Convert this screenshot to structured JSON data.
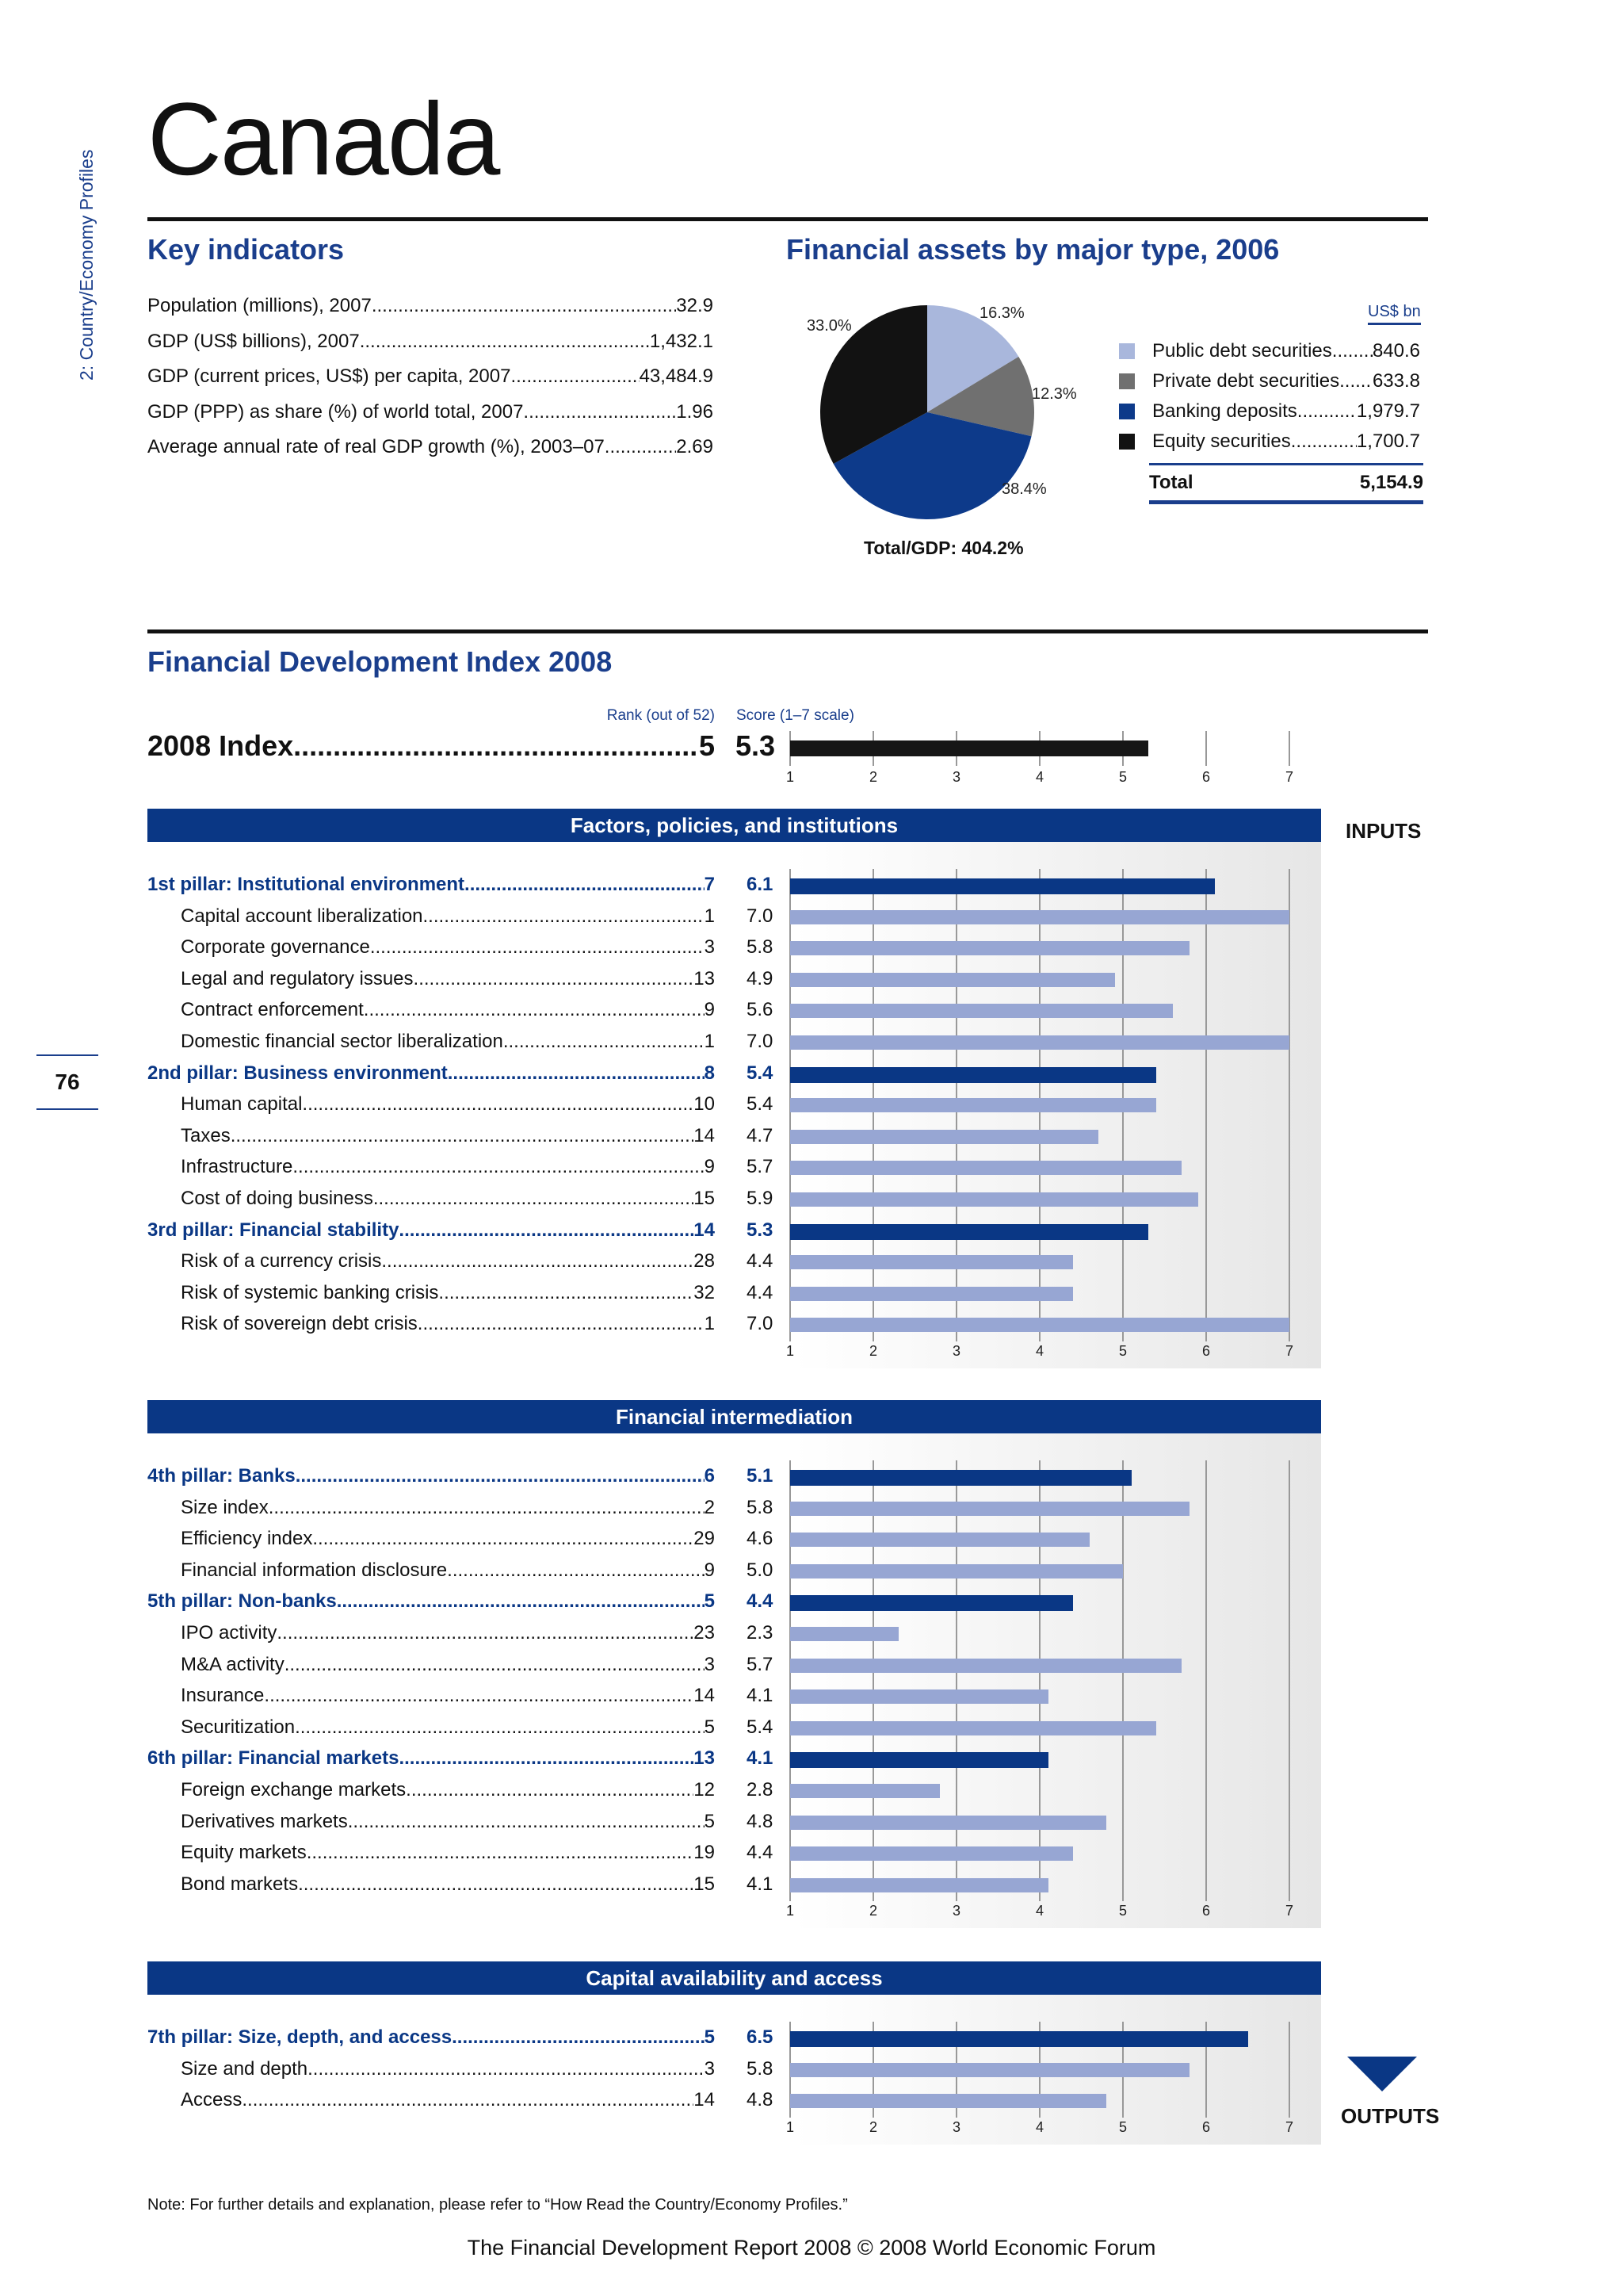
{
  "side_tab": "2: Country/Economy Profiles",
  "page_number": "76",
  "country": "Canada",
  "key_indicators": {
    "title": "Key indicators",
    "items": [
      {
        "label": "Population (millions), 2007",
        "value": "32.9"
      },
      {
        "label": "GDP (US$ billions), 2007",
        "value": "1,432.1"
      },
      {
        "label": "GDP (current prices, US$) per capita, 2007",
        "value": "43,484.9"
      },
      {
        "label": "GDP (PPP) as share (%) of world total, 2007",
        "value": "1.96"
      },
      {
        "label": "Average annual rate of real GDP growth (%), 2003–07",
        "value": "2.69"
      }
    ]
  },
  "financial_assets": {
    "title": "Financial assets by major type, 2006",
    "unit": "US$ bn",
    "pie_labels": [
      "16.3%",
      "12.3%",
      "38.4%",
      "33.0%"
    ],
    "total_gdp": "Total/GDP: 404.2%",
    "legend": [
      {
        "label": "Public debt securities",
        "value": "840.6",
        "color": "#a9b7dc"
      },
      {
        "label": "Private debt securities",
        "value": "633.8",
        "color": "#707070"
      },
      {
        "label": "Banking deposits",
        "value": "1,979.7",
        "color": "#0d3a8a"
      },
      {
        "label": "Equity securities",
        "value": "1,700.7",
        "color": "#121212"
      }
    ],
    "total_label": "Total",
    "total_value": "5,154.9"
  },
  "chart_data": [
    {
      "type": "pie",
      "title": "Financial assets by major type, 2006",
      "categories": [
        "Public debt securities",
        "Private debt securities",
        "Banking deposits",
        "Equity securities"
      ],
      "values": [
        840.6,
        633.8,
        1979.7,
        1700.7
      ],
      "percent_labels": [
        "16.3%",
        "12.3%",
        "38.4%",
        "33.0%"
      ],
      "colors": [
        "#a9b7dc",
        "#707070",
        "#0d3a8a",
        "#121212"
      ]
    },
    {
      "type": "bar",
      "orientation": "horizontal",
      "title": "Financial Development Index 2008",
      "xlim": [
        1,
        7
      ],
      "x_ticks": [
        1,
        2,
        3,
        4,
        5,
        6,
        7
      ],
      "categories": [
        "2008 Index",
        "1st pillar: Institutional environment",
        "Capital account liberalization",
        "Corporate governance",
        "Legal and regulatory issues",
        "Contract enforcement",
        "Domestic financial sector liberalization",
        "2nd pillar: Business environment",
        "Human capital",
        "Taxes",
        "Infrastructure",
        "Cost of doing business",
        "3rd pillar: Financial stability",
        "Risk of a currency crisis",
        "Risk of systemic banking crisis",
        "Risk of sovereign debt crisis",
        "4th pillar: Banks",
        "Size index",
        "Efficiency index",
        "Financial information disclosure",
        "5th pillar: Non-banks",
        "IPO activity",
        "M&A activity",
        "Insurance",
        "Securitization",
        "6th pillar: Financial markets",
        "Foreign exchange markets",
        "Derivatives markets",
        "Equity markets",
        "Bond markets",
        "7th pillar: Size, depth, and access",
        "Size and depth",
        "Access"
      ],
      "values": [
        5.3,
        6.1,
        7.0,
        5.8,
        4.9,
        5.6,
        7.0,
        5.4,
        5.4,
        4.7,
        5.7,
        5.9,
        5.3,
        4.4,
        4.4,
        7.0,
        5.1,
        5.8,
        4.6,
        5.0,
        4.4,
        2.3,
        5.7,
        4.1,
        5.4,
        4.1,
        2.8,
        4.8,
        4.4,
        4.1,
        6.5,
        5.8,
        4.8
      ],
      "ranks": [
        5,
        7,
        1,
        3,
        13,
        9,
        1,
        8,
        10,
        14,
        9,
        15,
        14,
        28,
        32,
        1,
        6,
        2,
        29,
        9,
        5,
        23,
        3,
        14,
        5,
        13,
        12,
        5,
        19,
        15,
        5,
        3,
        14
      ]
    }
  ],
  "fdi": {
    "title": "Financial Development Index 2008",
    "rank_header": "Rank (out of 52)",
    "score_header": "Score (1–7 scale)",
    "index_label": "2008 Index",
    "index_rank": "5",
    "index_score": "5.3",
    "ticks": [
      "1",
      "2",
      "3",
      "4",
      "5",
      "6",
      "7"
    ],
    "inputs_label": "INPUTS",
    "outputs_label": "OUTPUTS",
    "colors": {
      "pillar": "#0a3785",
      "sub": "#97a6d3",
      "index": "#161616"
    },
    "groups": [
      {
        "title": "Factors, policies, and institutions",
        "rows": [
          {
            "label": "1st pillar: Institutional environment",
            "rank": "7",
            "score": "6.1",
            "value": 6.1,
            "pillar": true
          },
          {
            "label": "Capital account liberalization",
            "rank": "1",
            "score": "7.0",
            "value": 7.0,
            "pillar": false
          },
          {
            "label": "Corporate governance",
            "rank": "3",
            "score": "5.8",
            "value": 5.8,
            "pillar": false
          },
          {
            "label": "Legal and regulatory issues",
            "rank": "13",
            "score": "4.9",
            "value": 4.9,
            "pillar": false
          },
          {
            "label": "Contract enforcement",
            "rank": "9",
            "score": "5.6",
            "value": 5.6,
            "pillar": false
          },
          {
            "label": "Domestic financial sector liberalization",
            "rank": "1",
            "score": "7.0",
            "value": 7.0,
            "pillar": false
          },
          {
            "label": "2nd pillar: Business environment",
            "rank": "8",
            "score": "5.4",
            "value": 5.4,
            "pillar": true
          },
          {
            "label": "Human capital",
            "rank": "10",
            "score": "5.4",
            "value": 5.4,
            "pillar": false
          },
          {
            "label": "Taxes",
            "rank": "14",
            "score": "4.7",
            "value": 4.7,
            "pillar": false
          },
          {
            "label": "Infrastructure",
            "rank": "9",
            "score": "5.7",
            "value": 5.7,
            "pillar": false
          },
          {
            "label": "Cost of doing business",
            "rank": "15",
            "score": "5.9",
            "value": 5.9,
            "pillar": false
          },
          {
            "label": "3rd pillar: Financial stability",
            "rank": "14",
            "score": "5.3",
            "value": 5.3,
            "pillar": true
          },
          {
            "label": "Risk of a currency crisis",
            "rank": "28",
            "score": "4.4",
            "value": 4.4,
            "pillar": false
          },
          {
            "label": "Risk of systemic banking crisis",
            "rank": "32",
            "score": "4.4",
            "value": 4.4,
            "pillar": false
          },
          {
            "label": "Risk of sovereign debt crisis",
            "rank": "1",
            "score": "7.0",
            "value": 7.0,
            "pillar": false
          }
        ]
      },
      {
        "title": "Financial intermediation",
        "rows": [
          {
            "label": "4th pillar: Banks",
            "rank": "6",
            "score": "5.1",
            "value": 5.1,
            "pillar": true
          },
          {
            "label": "Size index",
            "rank": "2",
            "score": "5.8",
            "value": 5.8,
            "pillar": false
          },
          {
            "label": "Efficiency index",
            "rank": "29",
            "score": "4.6",
            "value": 4.6,
            "pillar": false
          },
          {
            "label": "Financial information disclosure",
            "rank": "9",
            "score": "5.0",
            "value": 5.0,
            "pillar": false
          },
          {
            "label": "5th pillar: Non-banks",
            "rank": "5",
            "score": "4.4",
            "value": 4.4,
            "pillar": true
          },
          {
            "label": "IPO activity",
            "rank": "23",
            "score": "2.3",
            "value": 2.3,
            "pillar": false
          },
          {
            "label": "M&A activity",
            "rank": "3",
            "score": "5.7",
            "value": 5.7,
            "pillar": false
          },
          {
            "label": "Insurance",
            "rank": "14",
            "score": "4.1",
            "value": 4.1,
            "pillar": false
          },
          {
            "label": "Securitization",
            "rank": "5",
            "score": "5.4",
            "value": 5.4,
            "pillar": false
          },
          {
            "label": "6th pillar: Financial markets",
            "rank": "13",
            "score": "4.1",
            "value": 4.1,
            "pillar": true
          },
          {
            "label": "Foreign exchange markets",
            "rank": "12",
            "score": "2.8",
            "value": 2.8,
            "pillar": false
          },
          {
            "label": "Derivatives markets",
            "rank": "5",
            "score": "4.8",
            "value": 4.8,
            "pillar": false
          },
          {
            "label": "Equity markets",
            "rank": "19",
            "score": "4.4",
            "value": 4.4,
            "pillar": false
          },
          {
            "label": "Bond markets",
            "rank": "15",
            "score": "4.1",
            "value": 4.1,
            "pillar": false
          }
        ]
      },
      {
        "title": "Capital availability and access",
        "rows": [
          {
            "label": "7th pillar: Size, depth, and access",
            "rank": "5",
            "score": "6.5",
            "value": 6.5,
            "pillar": true
          },
          {
            "label": "Size and depth",
            "rank": "3",
            "score": "5.8",
            "value": 5.8,
            "pillar": false
          },
          {
            "label": "Access",
            "rank": "14",
            "score": "4.8",
            "value": 4.8,
            "pillar": false
          }
        ]
      }
    ]
  },
  "note": "Note: For further details and explanation, please refer to “How Read the Country/Economy Profiles.”",
  "footer": "The Financial Development Report 2008 © 2008 World Economic Forum"
}
